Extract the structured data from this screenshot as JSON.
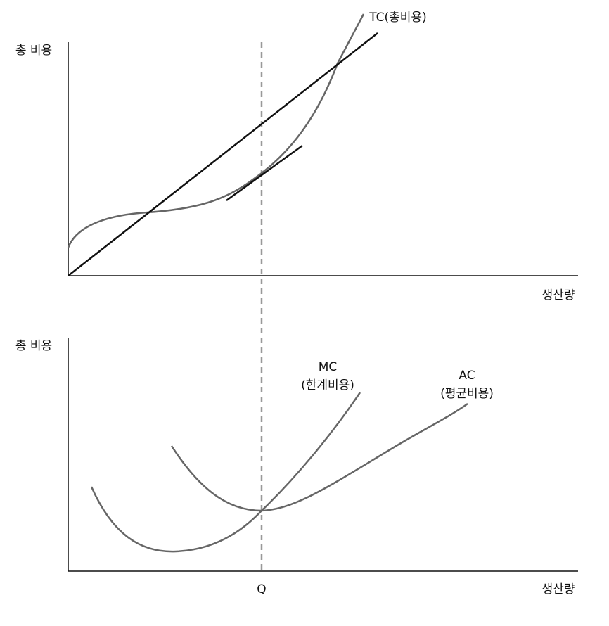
{
  "top_graph": {
    "y_label": "총 비용",
    "x_label": "생산량",
    "tc_label": "TC(총비용)"
  },
  "bottom_graph": {
    "y_label": "총 비용",
    "x_label": "생산량",
    "mc_label": [
      "MC",
      "(한계비용)"
    ],
    "ac_label": [
      "AC",
      "(평균비용)"
    ],
    "q_label": "Q"
  }
}
